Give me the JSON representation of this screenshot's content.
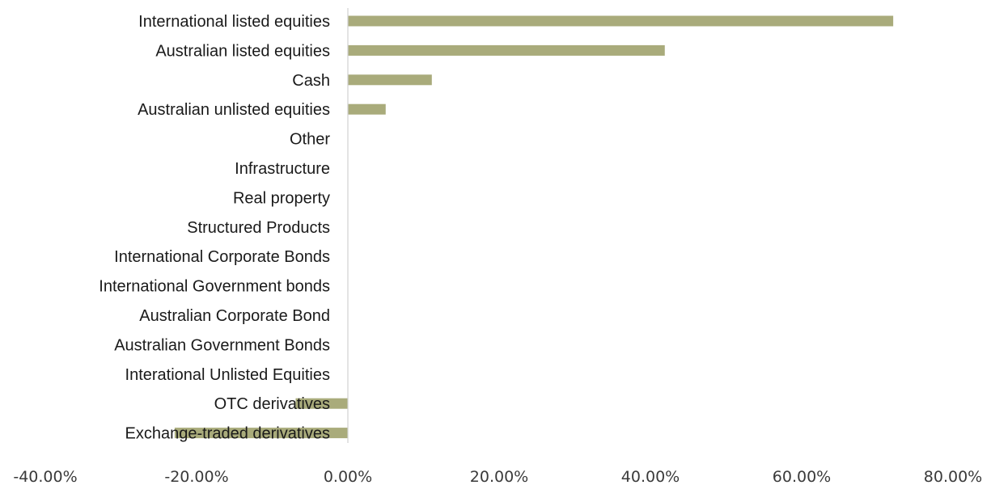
{
  "chart_data": {
    "type": "bar",
    "orientation": "horizontal",
    "categories": [
      "International listed equities",
      "Australian listed equities",
      "Cash",
      "Australian unlisted equities",
      "Other",
      "Infrastructure",
      "Real property",
      "Structured Products",
      "International Corporate Bonds",
      "International Government bonds",
      "Australian Corporate Bond",
      "Australian Government Bonds",
      "Interational Unlisted Equities",
      "OTC derivatives",
      "Exchange-traded derivatives"
    ],
    "values": [
      72.1,
      41.9,
      11.1,
      5.0,
      0,
      0,
      0,
      0,
      0,
      0,
      0,
      0,
      0,
      -6.9,
      -22.9
    ],
    "xlim": [
      -40,
      80
    ],
    "x_ticks": [
      -40,
      -20,
      0,
      20,
      40,
      60,
      80
    ],
    "x_tick_labels": [
      "-40.00%",
      "-20.00%",
      "0.00%",
      "20.00%",
      "40.00%",
      "60.00%",
      "80.00%"
    ],
    "bar_color": "#a9ab7b",
    "axis_color": "#d0d0d0",
    "grid": false,
    "legend": "none"
  }
}
